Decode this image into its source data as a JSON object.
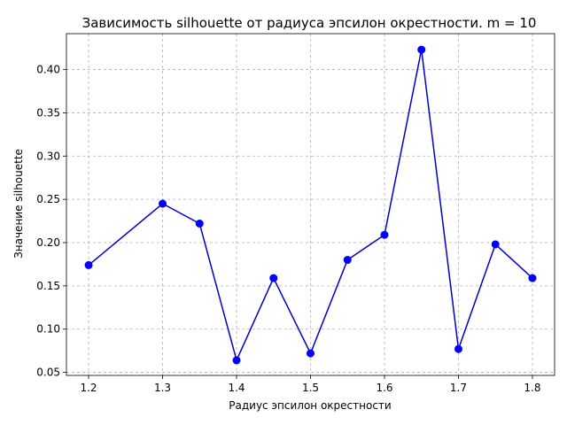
{
  "chart_data": {
    "type": "line",
    "title": "Зависимость silhouette от радиуса эпсилон окрестности. m = 10",
    "xlabel": "Радиус эпсилон окрестности",
    "ylabel": "Значение silhouette",
    "xlim": [
      1.17,
      1.83
    ],
    "ylim": [
      0.0465,
      0.4415
    ],
    "xticks": [
      "1.2",
      "1.3",
      "1.4",
      "1.5",
      "1.6",
      "1.7",
      "1.8"
    ],
    "yticks": [
      "0.05",
      "0.10",
      "0.15",
      "0.20",
      "0.25",
      "0.30",
      "0.35",
      "0.40"
    ],
    "grid": true,
    "series": [
      {
        "color": "#0000cc",
        "marker_color": "#0000ff",
        "x": [
          1.2,
          1.3,
          1.35,
          1.4,
          1.45,
          1.5,
          1.55,
          1.6,
          1.65,
          1.7,
          1.75,
          1.8
        ],
        "y": [
          0.174,
          0.245,
          0.222,
          0.064,
          0.159,
          0.072,
          0.18,
          0.209,
          0.423,
          0.077,
          0.198,
          0.159
        ]
      }
    ]
  }
}
